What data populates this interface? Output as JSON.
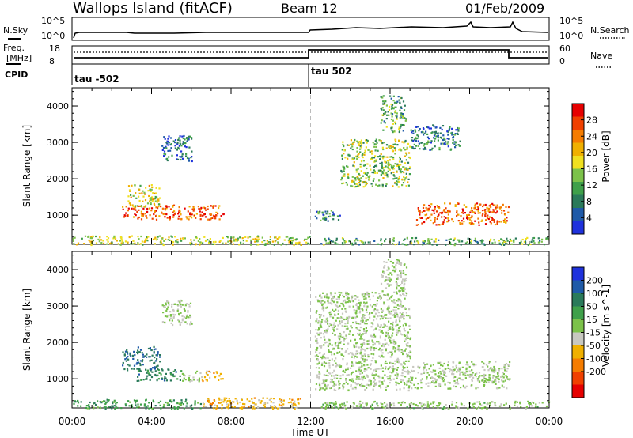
{
  "header": {
    "title": "Wallops Island (fitACF)",
    "beam": "Beam 12",
    "date": "01/Feb/2009"
  },
  "noise_panel": {
    "left_label": "N.Sky",
    "left_ticks": [
      "10^5",
      "10^0"
    ],
    "right_ticks": [
      "10^5",
      "10^0"
    ],
    "right_label": "N.Search"
  },
  "freq_panel": {
    "left_label_1": "Freq.",
    "left_label_2": "[MHz]",
    "left_ticks": [
      "18",
      "8"
    ],
    "right_ticks": [
      "60",
      "0"
    ],
    "right_label": "Nave"
  },
  "cpid": {
    "label": "CPID",
    "segments": [
      "tau -502",
      "tau 502"
    ],
    "change_hour": 12
  },
  "chart_data": [
    {
      "type": "heatmap",
      "name": "Power",
      "ylabel": "Slant Range [km]",
      "ylim": [
        200,
        4500
      ],
      "yticks": [
        "1000",
        "2000",
        "3000",
        "4000"
      ],
      "xlim": [
        0,
        24
      ],
      "colorbar": {
        "label": "Power [dB]",
        "ticks": [
          "4",
          "8",
          "12",
          "16",
          "20",
          "24",
          "28"
        ],
        "colors": [
          "#1f32dc",
          "#1f5aa8",
          "#2a7a5a",
          "#3fa04a",
          "#7cc24a",
          "#f0e020",
          "#f0b000",
          "#f57c00",
          "#f04000",
          "#e60000"
        ],
        "range": [
          0,
          30
        ]
      },
      "regions": [
        {
          "t": [
            2.5,
            7.6
          ],
          "r": [
            900,
            1300
          ],
          "level": 0.85
        },
        {
          "t": [
            2.8,
            4.4
          ],
          "r": [
            1250,
            1850
          ],
          "level": 0.55
        },
        {
          "t": [
            4.5,
            6.0
          ],
          "r": [
            2500,
            3200
          ],
          "level": 0.15
        },
        {
          "t": [
            0.0,
            12.0
          ],
          "r": [
            200,
            450
          ],
          "level": 0.5
        },
        {
          "t": [
            12.2,
            13.5
          ],
          "r": [
            850,
            1150
          ],
          "level": 0.25
        },
        {
          "t": [
            13.5,
            17.0
          ],
          "r": [
            1800,
            3100
          ],
          "level": 0.45
        },
        {
          "t": [
            15.5,
            16.8
          ],
          "r": [
            3300,
            4300
          ],
          "level": 0.35
        },
        {
          "t": [
            17.0,
            19.5
          ],
          "r": [
            2800,
            3500
          ],
          "level": 0.2
        },
        {
          "t": [
            17.3,
            22.0
          ],
          "r": [
            750,
            1350
          ],
          "level": 0.85
        },
        {
          "t": [
            12.5,
            24.0
          ],
          "r": [
            200,
            400
          ],
          "level": 0.35
        }
      ]
    },
    {
      "type": "heatmap",
      "name": "Velocity",
      "ylabel": "Slant Range [km]",
      "ylim": [
        200,
        4500
      ],
      "yticks": [
        "1000",
        "2000",
        "3000",
        "4000"
      ],
      "xlabel": "Time UT",
      "xticks": [
        "00:00",
        "04:00",
        "08:00",
        "12:00",
        "16:00",
        "20:00",
        "00:00"
      ],
      "xlim": [
        0,
        24
      ],
      "colorbar": {
        "label": "Velocity [m s^-1]",
        "ticks": [
          "200",
          "100",
          "50",
          "15",
          "-15",
          "-50",
          "-100",
          "-200"
        ],
        "colors": [
          "#1f32dc",
          "#1f5aa8",
          "#2a7a5a",
          "#3fa04a",
          "#7cc24a",
          "#c8c8c0",
          "#f0b000",
          "#f57c00",
          "#f04000",
          "#e60000"
        ],
        "range": [
          -250,
          250
        ]
      },
      "regions": [
        {
          "t": [
            2.5,
            4.4
          ],
          "r": [
            1250,
            1900
          ],
          "level": 0.7
        },
        {
          "t": [
            3.2,
            5.5
          ],
          "r": [
            950,
            1300
          ],
          "level": 0.6
        },
        {
          "t": [
            5.5,
            6.5
          ],
          "r": [
            950,
            1250
          ],
          "level": 0.0
        },
        {
          "t": [
            6.5,
            7.6
          ],
          "r": [
            950,
            1250
          ],
          "level": -0.35
        },
        {
          "t": [
            4.5,
            6.0
          ],
          "r": [
            2500,
            3200
          ],
          "level": 0.0
        },
        {
          "t": [
            0.0,
            6.5
          ],
          "r": [
            200,
            450
          ],
          "level": 0.4
        },
        {
          "t": [
            6.5,
            11.5
          ],
          "r": [
            200,
            500
          ],
          "level": -0.35
        },
        {
          "t": [
            12.2,
            17.0
          ],
          "r": [
            700,
            3400
          ],
          "level": 0.0
        },
        {
          "t": [
            15.5,
            16.8
          ],
          "r": [
            3300,
            4300
          ],
          "level": 0.0
        },
        {
          "t": [
            17.0,
            22.0
          ],
          "r": [
            750,
            1500
          ],
          "level": 0.0
        },
        {
          "t": [
            12.5,
            24.0
          ],
          "r": [
            200,
            400
          ],
          "level": 0.1
        }
      ]
    }
  ]
}
